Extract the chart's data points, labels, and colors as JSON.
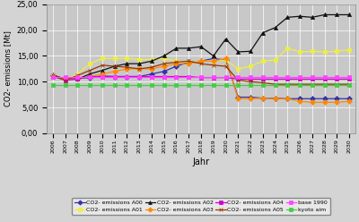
{
  "years": [
    2006,
    2007,
    2008,
    2009,
    2010,
    2011,
    2012,
    2013,
    2014,
    2015,
    2016,
    2017,
    2018,
    2019,
    2020,
    2021,
    2022,
    2023,
    2024,
    2025,
    2026,
    2027,
    2028,
    2029,
    2030
  ],
  "A00": [
    11.2,
    10.5,
    10.6,
    10.8,
    11.1,
    11.0,
    11.0,
    11.0,
    11.5,
    12.0,
    13.0,
    13.8,
    14.0,
    14.5,
    14.2,
    7.0,
    7.0,
    6.8,
    6.8,
    6.7,
    6.7,
    6.7,
    6.7,
    6.7,
    6.7
  ],
  "A01": [
    11.2,
    10.3,
    11.5,
    13.5,
    14.5,
    14.5,
    14.5,
    14.3,
    14.3,
    14.5,
    14.0,
    13.8,
    14.0,
    14.0,
    14.2,
    12.5,
    13.0,
    14.0,
    14.2,
    16.5,
    15.8,
    15.9,
    15.8,
    15.9,
    16.2
  ],
  "A02": [
    11.3,
    10.5,
    10.5,
    11.5,
    12.2,
    13.0,
    13.5,
    13.5,
    14.0,
    15.0,
    16.5,
    16.5,
    16.8,
    15.0,
    18.3,
    15.8,
    15.9,
    19.5,
    20.5,
    22.5,
    22.7,
    22.5,
    23.0,
    23.0,
    23.0
  ],
  "A03": [
    11.1,
    10.5,
    10.5,
    11.0,
    11.5,
    12.0,
    12.5,
    12.5,
    12.5,
    13.0,
    13.5,
    13.5,
    14.0,
    14.0,
    14.5,
    6.7,
    6.7,
    6.8,
    6.7,
    6.7,
    6.2,
    6.0,
    6.0,
    6.0,
    6.2
  ],
  "A04": [
    11.0,
    10.3,
    10.5,
    11.0,
    11.0,
    11.0,
    11.0,
    11.0,
    11.0,
    11.0,
    11.0,
    11.0,
    10.8,
    10.8,
    10.8,
    10.5,
    10.5,
    10.5,
    10.5,
    10.5,
    10.5,
    10.5,
    10.5,
    10.5,
    10.5
  ],
  "A05": [
    11.2,
    10.3,
    11.2,
    12.2,
    13.2,
    13.0,
    12.8,
    12.5,
    12.8,
    13.5,
    13.8,
    14.0,
    13.5,
    13.2,
    13.0,
    10.3,
    10.0,
    9.8,
    9.5,
    9.5,
    9.5,
    9.5,
    9.5,
    9.5,
    9.5
  ],
  "base1990": [
    11.0,
    11.0,
    11.0,
    11.0,
    11.0,
    11.0,
    11.0,
    11.0,
    11.0,
    11.0,
    11.0,
    11.0,
    11.0,
    11.0,
    11.0,
    11.0,
    11.0,
    11.0,
    11.0,
    11.0,
    11.0,
    11.0,
    11.0,
    11.0,
    11.0
  ],
  "kyoto": [
    9.3,
    9.3,
    9.3,
    9.3,
    9.3,
    9.3,
    9.3,
    9.3,
    9.3,
    9.3,
    9.3,
    9.3,
    9.3,
    9.3,
    9.3,
    9.3,
    9.3,
    9.3,
    9.3,
    9.3,
    9.3,
    9.3,
    9.3,
    9.3,
    9.3
  ],
  "colors": {
    "A00": "#3333aa",
    "A01": "#eeee44",
    "A02": "#111111",
    "A03": "#ff8800",
    "A04": "#cc00cc",
    "A05": "#993300",
    "base1990": "#ff44ff",
    "kyoto": "#44cc44"
  },
  "xlabel": "Jahr",
  "ylabel": "CO2- emissions [Mt]",
  "fig_bg": "#d4d4d4",
  "plot_bg": "#c8c8c8",
  "grid_color": "#ffffff"
}
